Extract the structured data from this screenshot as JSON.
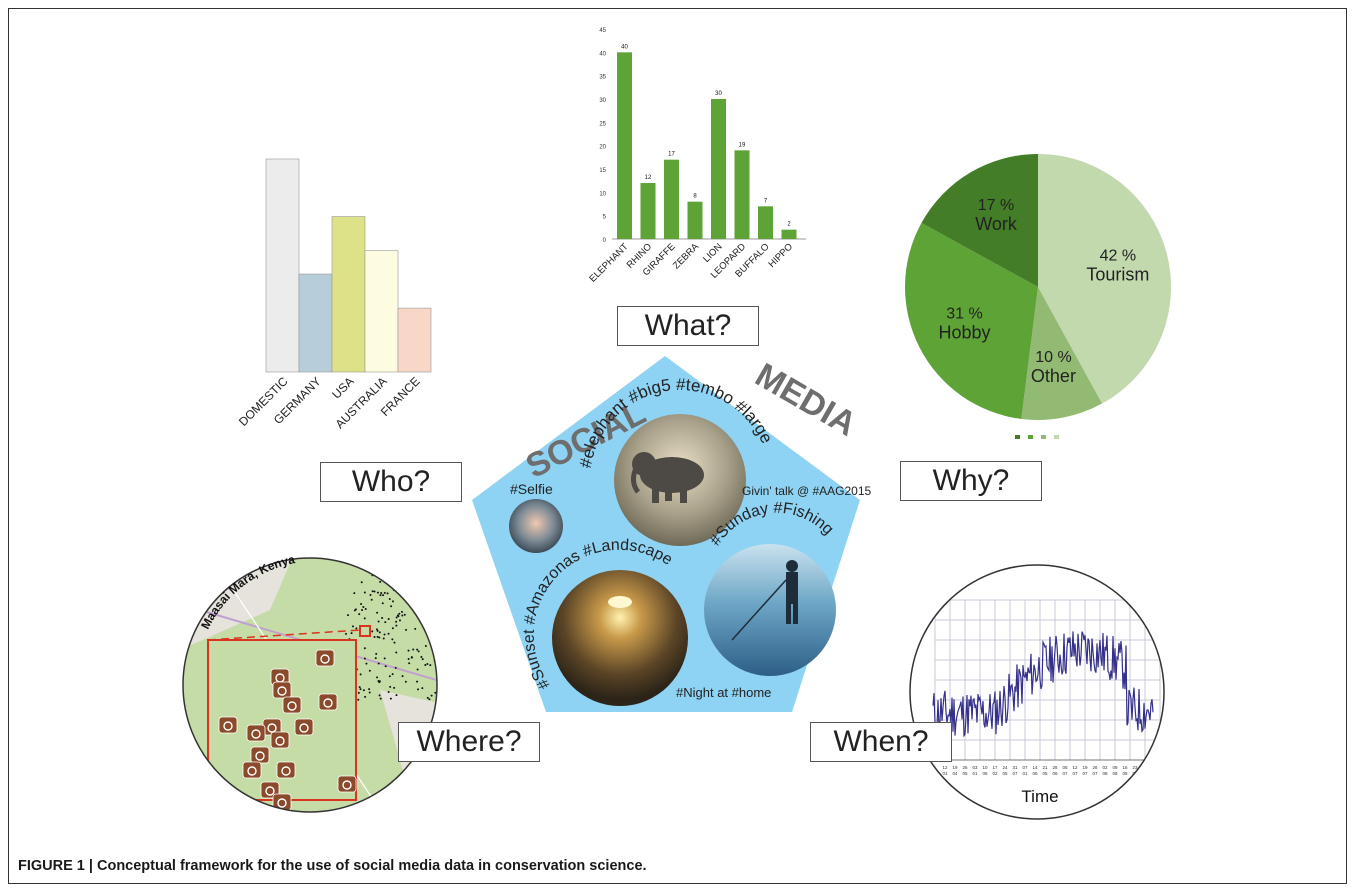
{
  "questions": {
    "what": "What?",
    "who": "Who?",
    "why": "Why?",
    "where": "Where?",
    "when": "When?"
  },
  "pentagon": {
    "title_left": "SOCIAL",
    "title_right": "MEDIA",
    "posts": {
      "elephant": "#elephant #big5 #tembo #large",
      "selfie": "#Selfie",
      "talk": "Givin' talk @ #AAG2015",
      "fishing": "#Sunday #Fishing",
      "sunset": "#Sunset #Amazonas #Landscape",
      "night": "#Night at #home"
    }
  },
  "map": {
    "title": "Maasai Mara, Kenya"
  },
  "timeseries": {
    "xlabel": "Time",
    "tick_labels": [
      "12 01",
      "19 04",
      "26 05",
      "03 01",
      "10 05",
      "17 02",
      "24 05",
      "31 07",
      "07 01",
      "14 06",
      "21 05",
      "28 06",
      "05 07",
      "12 07",
      "19 07",
      "26 07",
      "02 08",
      "09 08",
      "16 08",
      "23 08",
      "30 08"
    ]
  },
  "colors": {
    "pentagon": "#8fd3f4",
    "green_bar": "#5ea336",
    "map_land": "#c6dca7",
    "map_box": "#d9341e",
    "camera": "#8b4a2b",
    "line": "#35308a"
  },
  "chart_data": [
    {
      "type": "bar",
      "id": "what",
      "categories": [
        "ELEPHANT",
        "RHINO",
        "GIRAFFE",
        "ZEBRA",
        "LION",
        "LEOPARD",
        "BUFFALO",
        "HIPPO"
      ],
      "values": [
        40,
        12,
        17,
        8,
        30,
        19,
        7,
        2
      ],
      "ylim": [
        0,
        45
      ],
      "yticks": [
        0,
        5,
        10,
        15,
        20,
        25,
        30,
        35,
        40,
        45
      ]
    },
    {
      "type": "bar",
      "id": "who",
      "categories": [
        "DOMESTIC",
        "GERMANY",
        "USA",
        "AUSTRALIA",
        "FRANCE"
      ],
      "values": [
        100,
        46,
        73,
        57,
        30
      ],
      "colors": [
        "#ececec",
        "#b7cdd9",
        "#dde188",
        "#fdfce0",
        "#f9d7c7"
      ]
    },
    {
      "type": "pie",
      "id": "why",
      "slices": [
        {
          "label": "Tourism",
          "pct_label": "42 %",
          "value": 42,
          "color": "#c2d8ad"
        },
        {
          "label": "Other",
          "pct_label": "10 %",
          "value": 10,
          "color": "#93ba73"
        },
        {
          "label": "Hobby",
          "pct_label": "31 %",
          "value": 31,
          "color": "#5ea336"
        },
        {
          "label": "Work",
          "pct_label": "17 %",
          "value": 17,
          "color": "#447d27"
        }
      ]
    }
  ],
  "caption": "FIGURE 1 | Conceptual framework for the use of social media data in conservation science."
}
